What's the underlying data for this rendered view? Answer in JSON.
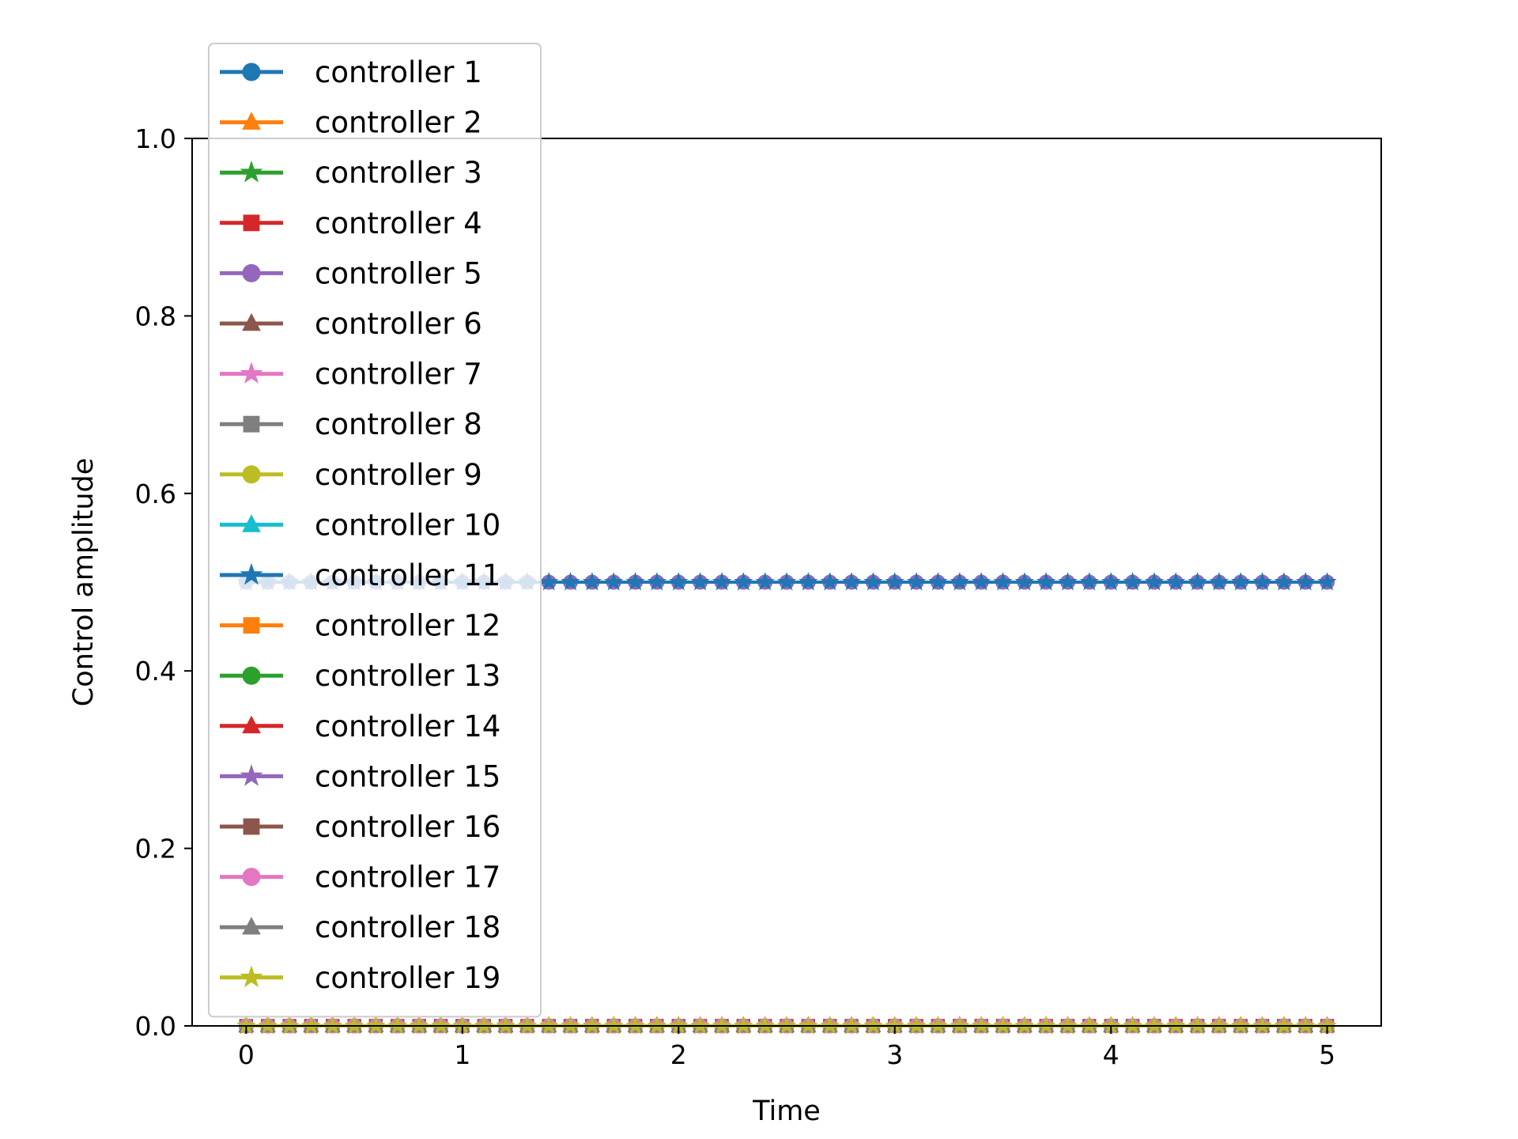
{
  "chart_data": {
    "type": "line",
    "title": "",
    "xlabel": "Time",
    "ylabel": "Control amplitude",
    "xlim": [
      -0.25,
      5.25
    ],
    "ylim": [
      0.0,
      1.0
    ],
    "xticks": [
      "0",
      "1",
      "2",
      "3",
      "4",
      "5"
    ],
    "yticks": [
      "0.0",
      "0.2",
      "0.4",
      "0.6",
      "0.8",
      "1.0"
    ],
    "grid": false,
    "legend_position": "upper-left",
    "x": {
      "start": 0,
      "stop": 5,
      "count": 51
    },
    "series": [
      {
        "name": "controller 1",
        "color": "#1f77b4",
        "marker": "circle",
        "value": 0.0
      },
      {
        "name": "controller 2",
        "color": "#ff7f0e",
        "marker": "triangle",
        "value": 0.0
      },
      {
        "name": "controller 3",
        "color": "#2ca02c",
        "marker": "star",
        "value": 0.0
      },
      {
        "name": "controller 4",
        "color": "#d62728",
        "marker": "square",
        "value": 0.0
      },
      {
        "name": "controller 5",
        "color": "#9467bd",
        "marker": "circle",
        "value": 0.5
      },
      {
        "name": "controller 6",
        "color": "#8c564b",
        "marker": "triangle",
        "value": 0.0
      },
      {
        "name": "controller 7",
        "color": "#e377c2",
        "marker": "star",
        "value": 0.5
      },
      {
        "name": "controller 8",
        "color": "#7f7f7f",
        "marker": "square",
        "value": 0.0
      },
      {
        "name": "controller 9",
        "color": "#bcbd22",
        "marker": "circle",
        "value": 0.0
      },
      {
        "name": "controller 10",
        "color": "#17becf",
        "marker": "triangle",
        "value": 0.0
      },
      {
        "name": "controller 11",
        "color": "#1f77b4",
        "marker": "star",
        "value": 0.5
      },
      {
        "name": "controller 12",
        "color": "#ff7f0e",
        "marker": "square",
        "value": 0.0
      },
      {
        "name": "controller 13",
        "color": "#2ca02c",
        "marker": "circle",
        "value": 0.0
      },
      {
        "name": "controller 14",
        "color": "#d62728",
        "marker": "triangle",
        "value": 0.0
      },
      {
        "name": "controller 15",
        "color": "#9467bd",
        "marker": "star",
        "value": 0.0
      },
      {
        "name": "controller 16",
        "color": "#8c564b",
        "marker": "square",
        "value": 0.0
      },
      {
        "name": "controller 17",
        "color": "#e377c2",
        "marker": "circle",
        "value": 0.0
      },
      {
        "name": "controller 18",
        "color": "#7f7f7f",
        "marker": "triangle",
        "value": 0.0
      },
      {
        "name": "controller 19",
        "color": "#bcbd22",
        "marker": "star",
        "value": 0.0
      }
    ]
  }
}
